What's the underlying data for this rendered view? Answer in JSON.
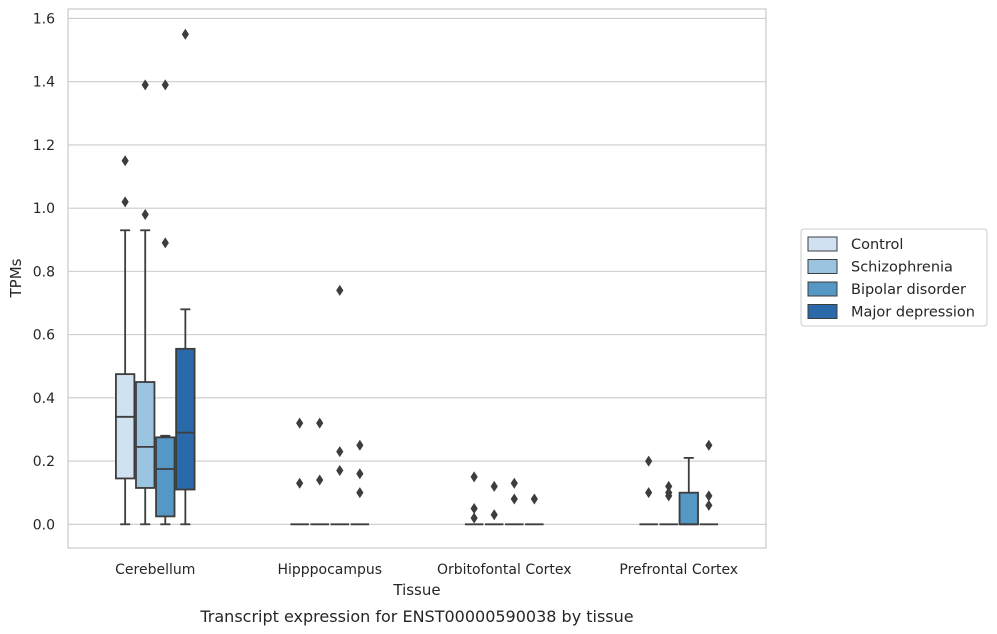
{
  "chart_data": {
    "type": "box",
    "title": "",
    "caption": "Transcript expression for ENST00000590038 by tissue",
    "xlabel": "Tissue",
    "ylabel": "TPMs",
    "ylim": [
      -0.075,
      1.63
    ],
    "yticks": [
      0.0,
      0.2,
      0.4,
      0.6,
      0.8,
      1.0,
      1.2,
      1.4,
      1.6
    ],
    "ytick_labels": [
      "0.0",
      "0.2",
      "0.4",
      "0.6",
      "0.8",
      "1.0",
      "1.2",
      "1.4",
      "1.6"
    ],
    "grid": "horizontal",
    "legend_position": "right",
    "categories": [
      "Cerebellum",
      "Hipppocampus",
      "Orbitofontal Cortex",
      "Prefrontal Cortex"
    ],
    "series": [
      {
        "name": "Control",
        "color": "#d0e1f2",
        "boxes": [
          {
            "whislo": 0.0,
            "q1": 0.145,
            "med": 0.34,
            "q3": 0.475,
            "whishi": 0.93,
            "fliers": [
              1.02,
              1.15
            ]
          },
          {
            "whislo": 0.0,
            "q1": 0.0,
            "med": 0.0,
            "q3": 0.0,
            "whishi": 0.0,
            "fliers": [
              0.13,
              0.32
            ]
          },
          {
            "whislo": 0.0,
            "q1": 0.0,
            "med": 0.0,
            "q3": 0.0,
            "whishi": 0.0,
            "fliers": [
              0.02,
              0.05,
              0.15
            ]
          },
          {
            "whislo": 0.0,
            "q1": 0.0,
            "med": 0.0,
            "q3": 0.0,
            "whishi": 0.0,
            "fliers": [
              0.1,
              0.2
            ]
          }
        ]
      },
      {
        "name": "Schizophrenia",
        "color": "#9ac4df",
        "boxes": [
          {
            "whislo": 0.0,
            "q1": 0.115,
            "med": 0.245,
            "q3": 0.45,
            "whishi": 0.93,
            "fliers": [
              0.98,
              1.39
            ]
          },
          {
            "whislo": 0.0,
            "q1": 0.0,
            "med": 0.0,
            "q3": 0.0,
            "whishi": 0.0,
            "fliers": [
              0.14,
              0.32
            ]
          },
          {
            "whislo": 0.0,
            "q1": 0.0,
            "med": 0.0,
            "q3": 0.0,
            "whishi": 0.0,
            "fliers": [
              0.03,
              0.12
            ]
          },
          {
            "whislo": 0.0,
            "q1": 0.0,
            "med": 0.0,
            "q3": 0.0,
            "whishi": 0.0,
            "fliers": [
              0.09,
              0.1,
              0.12
            ]
          }
        ]
      },
      {
        "name": "Bipolar disorder",
        "color": "#5597c5",
        "boxes": [
          {
            "whislo": 0.0,
            "q1": 0.025,
            "med": 0.175,
            "q3": 0.275,
            "whishi": 0.28,
            "fliers": [
              0.89,
              1.39
            ]
          },
          {
            "whislo": 0.0,
            "q1": 0.0,
            "med": 0.0,
            "q3": 0.0,
            "whishi": 0.0,
            "fliers": [
              0.17,
              0.23,
              0.74
            ]
          },
          {
            "whislo": 0.0,
            "q1": 0.0,
            "med": 0.0,
            "q3": 0.0,
            "whishi": 0.0,
            "fliers": [
              0.08,
              0.13
            ]
          },
          {
            "whislo": 0.0,
            "q1": 0.0,
            "med": 0.0,
            "q3": 0.1,
            "whishi": 0.21,
            "fliers": []
          }
        ]
      },
      {
        "name": "Major depression",
        "color": "#2a69aa",
        "boxes": [
          {
            "whislo": 0.0,
            "q1": 0.11,
            "med": 0.29,
            "q3": 0.555,
            "whishi": 0.68,
            "fliers": [
              1.55
            ]
          },
          {
            "whislo": 0.0,
            "q1": 0.0,
            "med": 0.0,
            "q3": 0.0,
            "whishi": 0.0,
            "fliers": [
              0.1,
              0.16,
              0.25
            ]
          },
          {
            "whislo": 0.0,
            "q1": 0.0,
            "med": 0.0,
            "q3": 0.0,
            "whishi": 0.0,
            "fliers": [
              0.08
            ]
          },
          {
            "whislo": 0.0,
            "q1": 0.0,
            "med": 0.0,
            "q3": 0.0,
            "whishi": 0.0,
            "fliers": [
              0.06,
              0.09,
              0.25
            ]
          }
        ]
      }
    ]
  }
}
